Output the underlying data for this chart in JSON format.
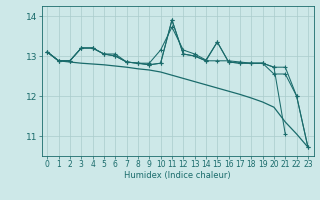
{
  "x": [
    0,
    1,
    2,
    3,
    4,
    5,
    6,
    7,
    8,
    9,
    10,
    11,
    12,
    13,
    14,
    15,
    16,
    17,
    18,
    19,
    20,
    21,
    22,
    23
  ],
  "line1": [
    13.1,
    12.88,
    12.88,
    13.2,
    13.2,
    13.05,
    13.05,
    12.85,
    12.82,
    12.82,
    13.15,
    13.72,
    13.15,
    13.05,
    12.9,
    13.35,
    12.85,
    12.82,
    12.82,
    12.82,
    12.72,
    11.05,
    null,
    null
  ],
  "line2": [
    13.1,
    12.88,
    12.88,
    13.2,
    13.2,
    13.05,
    13.0,
    12.85,
    12.82,
    12.78,
    12.82,
    13.9,
    13.05,
    13.0,
    12.88,
    12.88,
    12.88,
    12.85,
    12.82,
    12.82,
    12.72,
    12.72,
    12.0,
    10.72
  ],
  "line3": [
    13.1,
    12.88,
    12.88,
    13.2,
    13.2,
    13.05,
    13.0,
    12.85,
    12.82,
    12.78,
    12.82,
    13.9,
    13.05,
    13.0,
    12.88,
    13.35,
    12.85,
    12.82,
    12.82,
    12.82,
    12.55,
    12.55,
    12.0,
    10.72
  ],
  "line4": [
    13.1,
    12.88,
    12.85,
    12.82,
    12.8,
    12.78,
    12.75,
    12.72,
    12.68,
    12.65,
    12.6,
    12.52,
    12.44,
    12.36,
    12.28,
    12.2,
    12.12,
    12.04,
    11.95,
    11.85,
    11.72,
    11.35,
    11.05,
    10.72
  ],
  "bg_color": "#cde8e8",
  "line_color": "#1a6b6b",
  "grid_color": "#aacccc",
  "xlabel": "Humidex (Indice chaleur)",
  "ylim": [
    10.5,
    14.25
  ],
  "xlim": [
    -0.5,
    23.5
  ],
  "yticks": [
    11,
    12,
    13,
    14
  ],
  "xticks": [
    0,
    1,
    2,
    3,
    4,
    5,
    6,
    7,
    8,
    9,
    10,
    11,
    12,
    13,
    14,
    15,
    16,
    17,
    18,
    19,
    20,
    21,
    22,
    23
  ],
  "tick_fontsize": 5.5,
  "label_fontsize": 6.0,
  "ylabel_fontsize": 6.5
}
